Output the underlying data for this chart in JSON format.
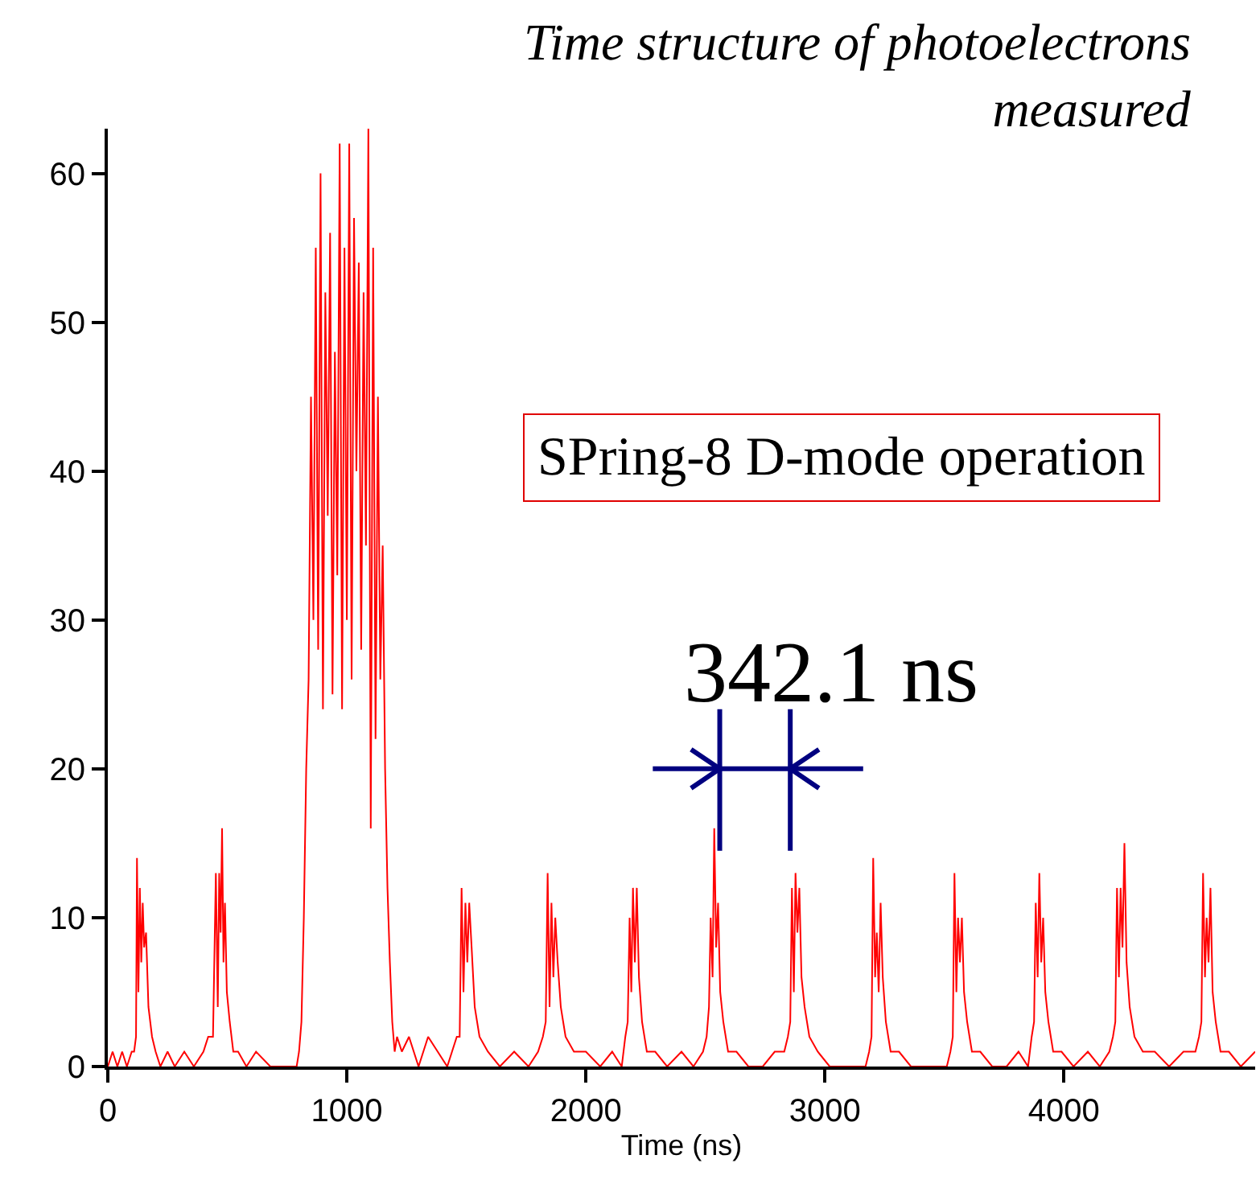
{
  "chart_data": {
    "type": "line",
    "title": "Time structure of photoelectrons\nmeasured",
    "xlabel": "Time (ns)",
    "annotations": [
      "SPring-8 D-mode operation",
      "342.1 ns"
    ],
    "x": [
      0,
      20,
      40,
      60,
      80,
      100,
      110,
      118,
      122,
      128,
      134,
      140,
      146,
      152,
      160,
      170,
      185,
      200,
      220,
      250,
      280,
      320,
      360,
      400,
      420,
      440,
      452,
      460,
      466,
      472,
      478,
      484,
      490,
      498,
      510,
      525,
      545,
      580,
      620,
      680,
      740,
      790,
      800,
      810,
      820,
      830,
      840,
      850,
      860,
      870,
      880,
      890,
      900,
      910,
      920,
      930,
      940,
      950,
      960,
      970,
      980,
      990,
      1000,
      1010,
      1020,
      1030,
      1040,
      1050,
      1060,
      1070,
      1080,
      1090,
      1100,
      1110,
      1120,
      1130,
      1140,
      1150,
      1160,
      1170,
      1180,
      1190,
      1200,
      1210,
      1230,
      1260,
      1300,
      1340,
      1380,
      1420,
      1440,
      1460,
      1472,
      1480,
      1488,
      1496,
      1504,
      1512,
      1522,
      1535,
      1555,
      1590,
      1640,
      1700,
      1760,
      1800,
      1820,
      1832,
      1840,
      1848,
      1856,
      1864,
      1872,
      1882,
      1895,
      1915,
      1950,
      2000,
      2060,
      2110,
      2150,
      2165,
      2175,
      2183,
      2190,
      2197,
      2205,
      2213,
      2222,
      2235,
      2255,
      2290,
      2340,
      2400,
      2450,
      2490,
      2505,
      2515,
      2522,
      2530,
      2537,
      2545,
      2553,
      2562,
      2575,
      2595,
      2630,
      2680,
      2740,
      2790,
      2830,
      2845,
      2855,
      2862,
      2870,
      2877,
      2885,
      2893,
      2902,
      2915,
      2935,
      2970,
      3020,
      3080,
      3130,
      3170,
      3185,
      3195,
      3202,
      3210,
      3217,
      3225,
      3233,
      3242,
      3255,
      3275,
      3310,
      3360,
      3420,
      3470,
      3510,
      3525,
      3535,
      3542,
      3550,
      3557,
      3565,
      3573,
      3582,
      3595,
      3615,
      3650,
      3700,
      3760,
      3810,
      3850,
      3865,
      3875,
      3882,
      3890,
      3897,
      3905,
      3913,
      3922,
      3935,
      3955,
      3990,
      4040,
      4100,
      4150,
      4190,
      4205,
      4215,
      4222,
      4230,
      4237,
      4245,
      4253,
      4262,
      4275,
      4295,
      4330,
      4380,
      4440,
      4500,
      4550,
      4565,
      4575,
      4582,
      4590,
      4597,
      4605,
      4613,
      4622,
      4635,
      4655,
      4690,
      4740,
      4800
    ],
    "series": [
      {
        "color": "#ff0000",
        "values": [
          0,
          1,
          0,
          1,
          0,
          1,
          1,
          2,
          14,
          5,
          12,
          7,
          11,
          8,
          9,
          4,
          2,
          1,
          0,
          1,
          0,
          1,
          0,
          1,
          2,
          2,
          13,
          4,
          13,
          9,
          16,
          7,
          11,
          5,
          3,
          1,
          1,
          0,
          1,
          0,
          0,
          0,
          1,
          3,
          10,
          20,
          26,
          45,
          30,
          55,
          28,
          60,
          24,
          52,
          37,
          56,
          25,
          48,
          33,
          62,
          24,
          55,
          30,
          62,
          26,
          57,
          40,
          54,
          28,
          52,
          35,
          63,
          16,
          55,
          22,
          45,
          26,
          35,
          20,
          12,
          7,
          3,
          1,
          2,
          1,
          2,
          0,
          2,
          1,
          0,
          1,
          2,
          2,
          12,
          5,
          11,
          7,
          11,
          8,
          4,
          2,
          1,
          0,
          1,
          0,
          1,
          2,
          3,
          13,
          4,
          11,
          6,
          10,
          7,
          4,
          2,
          1,
          1,
          0,
          1,
          0,
          2,
          3,
          10,
          5,
          12,
          7,
          12,
          6,
          3,
          1,
          1,
          0,
          1,
          0,
          1,
          2,
          4,
          10,
          6,
          16,
          8,
          11,
          5,
          3,
          1,
          1,
          0,
          0,
          1,
          1,
          2,
          3,
          12,
          5,
          13,
          9,
          12,
          6,
          4,
          2,
          1,
          0,
          0,
          0,
          0,
          1,
          2,
          14,
          6,
          9,
          5,
          11,
          6,
          3,
          1,
          1,
          0,
          0,
          0,
          0,
          1,
          2,
          13,
          5,
          10,
          7,
          10,
          5,
          3,
          1,
          1,
          0,
          0,
          1,
          0,
          2,
          3,
          11,
          6,
          13,
          7,
          10,
          5,
          3,
          1,
          1,
          0,
          1,
          0,
          1,
          2,
          3,
          12,
          6,
          12,
          8,
          15,
          7,
          4,
          2,
          1,
          1,
          0,
          1,
          1,
          2,
          3,
          13,
          6,
          10,
          7,
          12,
          5,
          3,
          1,
          1,
          0,
          1
        ]
      }
    ],
    "xlim": [
      0,
      4800
    ],
    "xticks": [
      0,
      1000,
      2000,
      3000,
      4000
    ],
    "ylim": [
      0,
      63
    ],
    "yticks": [
      0,
      10,
      20,
      30,
      40,
      50,
      60
    ],
    "grid": false,
    "legend": false,
    "marker": "none",
    "line_style": "solid"
  }
}
